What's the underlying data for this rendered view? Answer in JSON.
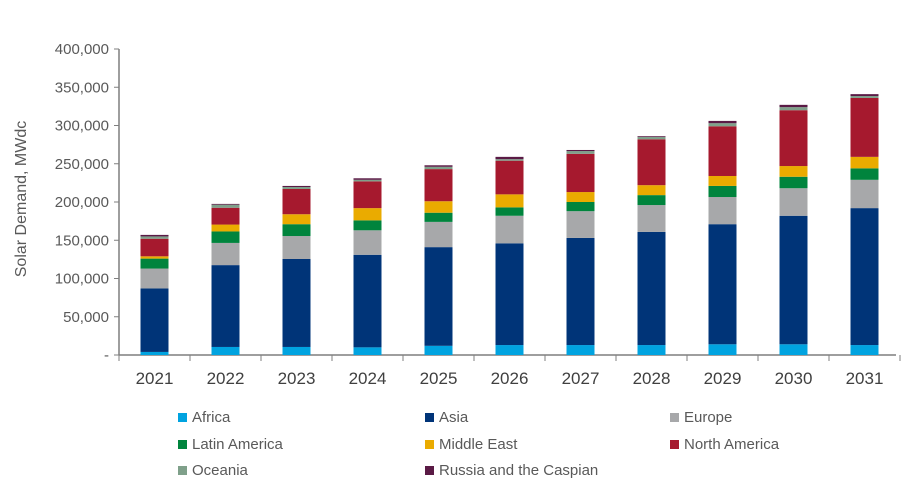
{
  "chart_data": {
    "type": "bar",
    "stacked": true,
    "title": "",
    "xlabel": "",
    "ylabel": "Solar Demand, MWdc",
    "ylim": [
      0,
      400000
    ],
    "yticks": [
      0,
      50000,
      100000,
      150000,
      200000,
      250000,
      300000,
      350000,
      400000
    ],
    "ytick_labels": [
      "-",
      "50,000",
      "100,000",
      "150,000",
      "200,000",
      "250,000",
      "300,000",
      "350,000",
      "400,000"
    ],
    "grid": false,
    "legend_position": "bottom",
    "categories": [
      "2021",
      "2022",
      "2023",
      "2024",
      "2025",
      "2026",
      "2027",
      "2028",
      "2029",
      "2030",
      "2031"
    ],
    "series": [
      {
        "name": "Africa",
        "color": "#00a3e0",
        "values": [
          4000,
          10500,
          10500,
          10000,
          12000,
          13000,
          13000,
          13000,
          14000,
          14000,
          13000
        ]
      },
      {
        "name": "Asia",
        "color": "#003478",
        "values": [
          83000,
          107000,
          115000,
          121000,
          129000,
          133000,
          140000,
          148000,
          157000,
          168000,
          179000
        ]
      },
      {
        "name": "Europe",
        "color": "#a7a8aa",
        "values": [
          26000,
          29000,
          30000,
          32000,
          33000,
          36000,
          35000,
          35000,
          35500,
          36000,
          37000
        ]
      },
      {
        "name": "Latin America",
        "color": "#00843d",
        "values": [
          13000,
          15000,
          15500,
          13000,
          12000,
          11000,
          12000,
          13000,
          14500,
          15000,
          15000
        ]
      },
      {
        "name": "Middle East",
        "color": "#eaab00",
        "values": [
          3000,
          9000,
          13000,
          16000,
          15000,
          17000,
          13000,
          13000,
          13000,
          14000,
          15000
        ]
      },
      {
        "name": "North America",
        "color": "#a6192e",
        "values": [
          23000,
          22000,
          33000,
          35000,
          42000,
          44000,
          50000,
          60000,
          65000,
          73000,
          77000
        ]
      },
      {
        "name": "Oceania",
        "color": "#7fa08a",
        "values": [
          3000,
          4000,
          2600,
          2000,
          3000,
          2000,
          3600,
          3000,
          4000,
          4000,
          2500
        ]
      },
      {
        "name": "Russia and the Caspian",
        "color": "#5a1a45",
        "values": [
          2000,
          1000,
          1400,
          2000,
          2000,
          3000,
          1400,
          1000,
          3000,
          3000,
          2500
        ]
      }
    ]
  }
}
